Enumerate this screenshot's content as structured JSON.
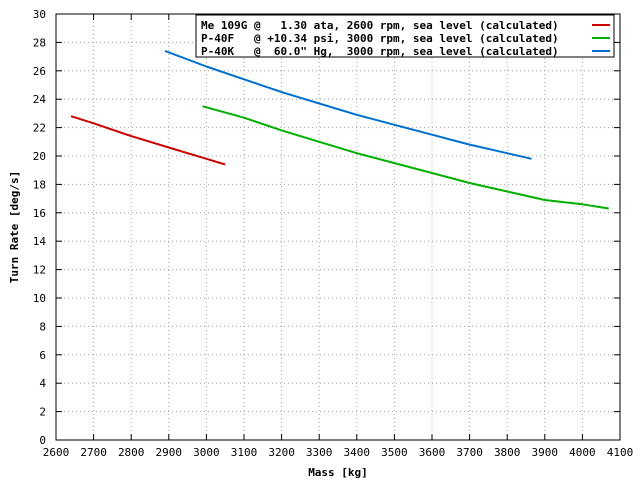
{
  "chart_data": {
    "type": "line",
    "title": "",
    "xlabel": "Mass [kg]",
    "ylabel": "Turn Rate [deg/s]",
    "xlim": [
      2600,
      4100
    ],
    "ylim": [
      0,
      30
    ],
    "x_ticks": [
      2600,
      2700,
      2800,
      2900,
      3000,
      3100,
      3200,
      3300,
      3400,
      3500,
      3600,
      3700,
      3800,
      3900,
      4000,
      4100
    ],
    "y_ticks": [
      0,
      2,
      4,
      6,
      8,
      10,
      12,
      14,
      16,
      18,
      20,
      22,
      24,
      26,
      28,
      30
    ],
    "grid": true,
    "legend_position": "top-right",
    "series": [
      {
        "name": "Me 109G @   1.30 ata, 2600 rpm, sea level (calculated)",
        "color": "#cc0000",
        "x": [
          2640,
          2700,
          2800,
          2900,
          3000,
          3050
        ],
        "y": [
          22.8,
          22.3,
          21.4,
          20.6,
          19.8,
          19.4
        ]
      },
      {
        "name": "P-40F   @ +10.34 psi, 3000 rpm, sea level (calculated)",
        "color": "#00b000",
        "x": [
          2990,
          3100,
          3200,
          3300,
          3400,
          3500,
          3600,
          3700,
          3800,
          3900,
          4000,
          4070
        ],
        "y": [
          23.5,
          22.7,
          21.8,
          21.0,
          20.2,
          19.5,
          18.8,
          18.1,
          17.5,
          16.9,
          16.6,
          16.3
        ]
      },
      {
        "name": "P-40K   @  60.0\" Hg,  3000 rpm, sea level (calculated)",
        "color": "#0070d0",
        "x": [
          2890,
          3000,
          3100,
          3200,
          3300,
          3400,
          3500,
          3600,
          3700,
          3800,
          3865
        ],
        "y": [
          27.4,
          26.3,
          25.4,
          24.5,
          23.7,
          22.9,
          22.2,
          21.5,
          20.8,
          20.2,
          19.8
        ]
      }
    ]
  }
}
